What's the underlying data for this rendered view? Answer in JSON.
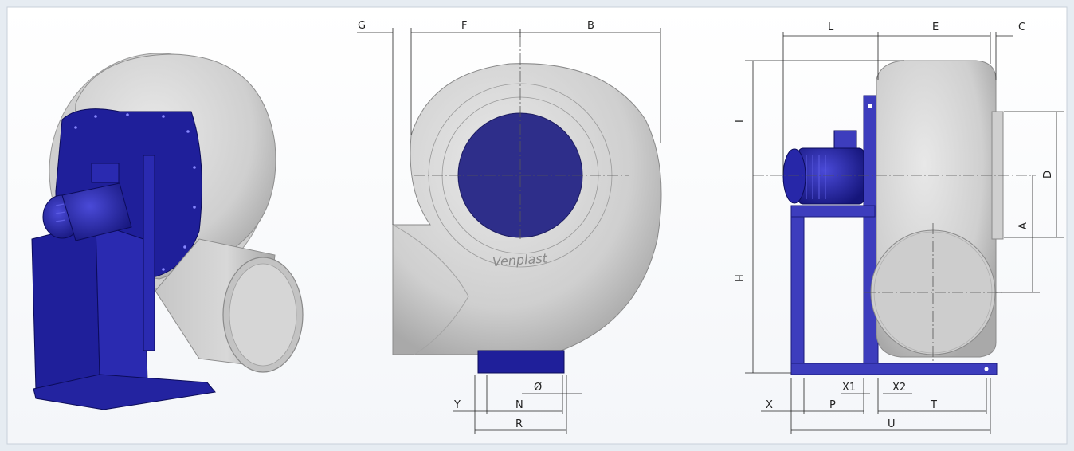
{
  "brand": "Venplast",
  "dimension_labels": {
    "G": "G",
    "F": "F",
    "B": "B",
    "L": "L",
    "E": "E",
    "C": "C",
    "I": "I",
    "D": "D",
    "A": "A",
    "H": "H",
    "Y": "Y",
    "N": "N",
    "R": "R",
    "PHI": "Ø",
    "X": "X",
    "P": "P",
    "X1": "X1",
    "X2": "X2",
    "T": "T",
    "U": "U"
  },
  "colors": {
    "background": "#e6ecf2",
    "panel": "#ffffff",
    "housing": "#d7d7d7",
    "housing_dark": "#b7b7b7",
    "frame_blue": "#1f1f9a",
    "frame_blue_side": "#3d3dbd",
    "inlet_blue": "#2e2e8a"
  },
  "icons": [
    "fan-isometric-view",
    "fan-front-view",
    "fan-side-view"
  ]
}
